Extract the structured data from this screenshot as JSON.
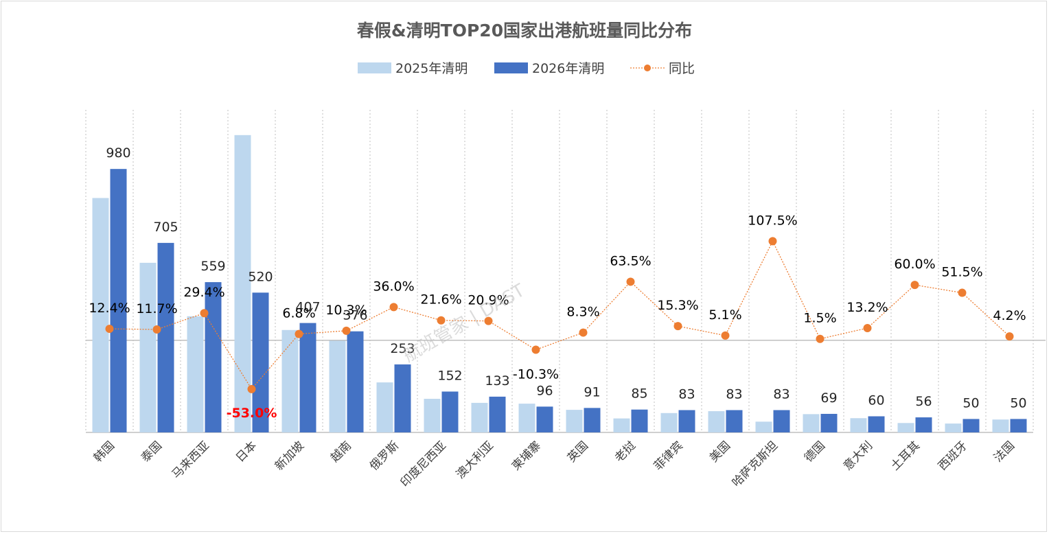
{
  "colors": {
    "series_2025": "#bdd7ee",
    "series_2026": "#4472c4",
    "yoy_line": "#ed7d31",
    "negative_label": "#ff0000",
    "grid": "#bfbfbf"
  },
  "watermark": "航班管家 | DAST",
  "chart_data": {
    "type": "bar",
    "title": "春假&清明TOP20国家出港航班量同比分布",
    "legend_position": "top",
    "categories": [
      "韩国",
      "泰国",
      "马来西亚",
      "日本",
      "新加坡",
      "越南",
      "俄罗斯",
      "印度尼西亚",
      "澳大利亚",
      "柬埔寨",
      "英国",
      "老挝",
      "菲律宾",
      "美国",
      "哈萨克斯坦",
      "德国",
      "意大利",
      "土耳其",
      "西班牙",
      "法国"
    ],
    "series": [
      {
        "name": "2025年清明",
        "type": "bar",
        "values": [
          872,
          631,
          432,
          1106,
          381,
          341,
          186,
          125,
          110,
          107,
          84,
          52,
          72,
          79,
          40,
          68,
          53,
          35,
          33,
          48
        ]
      },
      {
        "name": "2026年清明",
        "type": "bar",
        "values": [
          980,
          705,
          559,
          520,
          407,
          376,
          253,
          152,
          133,
          96,
          91,
          85,
          83,
          83,
          83,
          69,
          60,
          56,
          50,
          50
        ]
      },
      {
        "name": "同比",
        "type": "line",
        "axis": "secondary",
        "values": [
          12.4,
          11.7,
          29.4,
          -53.0,
          6.8,
          10.3,
          36.0,
          21.6,
          20.9,
          -10.3,
          8.3,
          63.5,
          15.3,
          5.1,
          107.5,
          1.5,
          13.2,
          60.0,
          51.5,
          4.2
        ],
        "labels": [
          "12.4%",
          "11.7%",
          "29.4%",
          "-53.0%",
          "6.8%",
          "10.3%",
          "36.0%",
          "21.6%",
          "20.9%",
          "-10.3%",
          "8.3%",
          "63.5%",
          "15.3%",
          "5.1%",
          "107.5%",
          "1.5%",
          "13.2%",
          "60.0%",
          "51.5%",
          "4.2%"
        ]
      }
    ],
    "ylim_primary": [
      0,
      1200
    ],
    "ylim_secondary": [
      -100,
      250
    ],
    "vertical_grid": true
  }
}
